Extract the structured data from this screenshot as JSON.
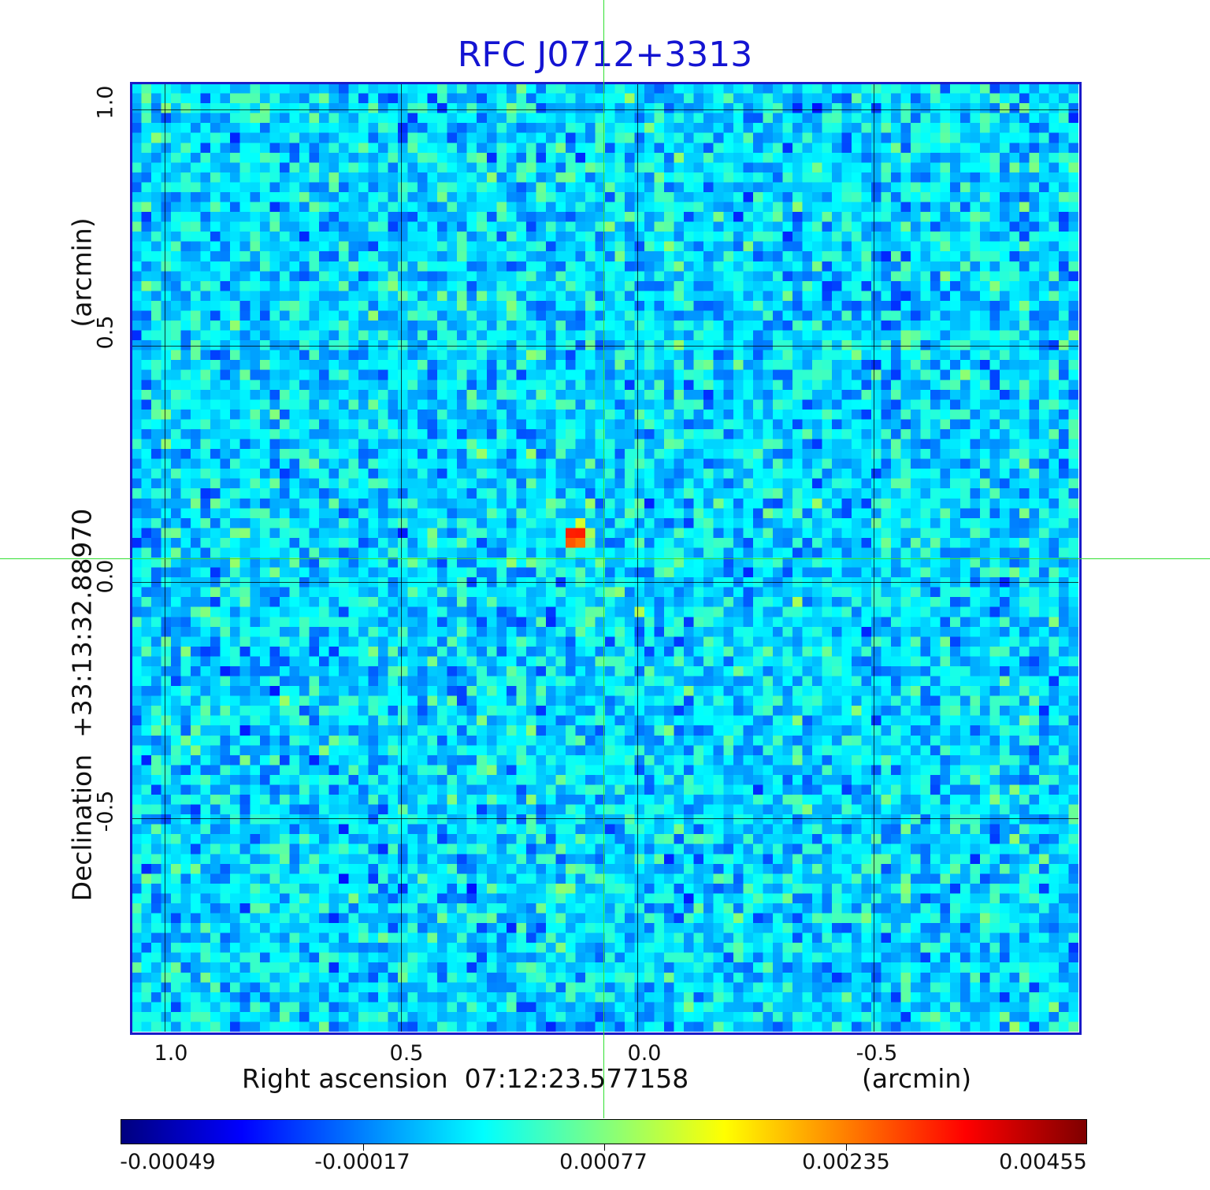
{
  "title": "RFC J0712+3313",
  "x_axis": {
    "label": "Right ascension  07:12:23.577158",
    "unit": "(arcmin)",
    "ticks": [
      "1.0",
      "0.5",
      "0.0",
      "-0.5"
    ]
  },
  "y_axis": {
    "label": "Declination  +33:13:32.88970",
    "unit": "(arcmin)",
    "ticks": [
      "1.0",
      "0.5",
      "0.0",
      "-0.5"
    ]
  },
  "colorbar": {
    "ticks": [
      "-0.00049",
      "-0.00017",
      "0.00077",
      "0.00235",
      "0.00455"
    ],
    "colors": [
      "#00007f",
      "#0000ff",
      "#0080ff",
      "#00ffff",
      "#80ff80",
      "#ffff00",
      "#ff8000",
      "#ff0000",
      "#7f0000"
    ]
  },
  "colors": {
    "title": "#1414d2",
    "crosshair": "#33e033",
    "frame": "#1a1ac8"
  }
}
